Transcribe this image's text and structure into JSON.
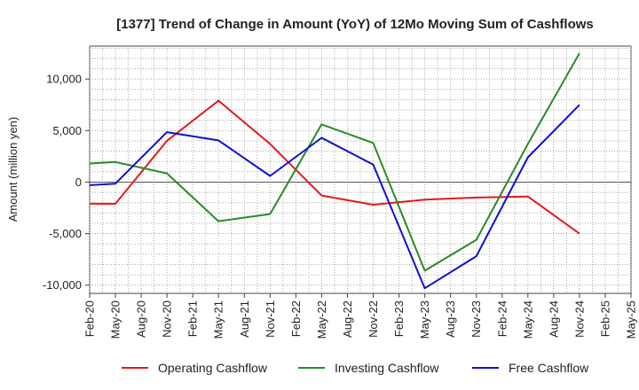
{
  "chart_data": {
    "type": "line",
    "title": "[1377]  Trend of Change in Amount (YoY) of 12Mo Moving Sum of Cashflows",
    "xlabel": "",
    "ylabel": "Amount (million yen)",
    "categories": [
      "Feb-20",
      "May-20",
      "Aug-20",
      "Nov-20",
      "Feb-21",
      "May-21",
      "Aug-21",
      "Nov-21",
      "Feb-22",
      "May-22",
      "Aug-22",
      "Nov-22",
      "Feb-23",
      "May-23",
      "Aug-23",
      "Nov-23",
      "Feb-24",
      "May-24",
      "Aug-24",
      "Nov-24",
      "Feb-25",
      "May-25"
    ],
    "ylim": [
      -10800,
      13200
    ],
    "yticks": [
      -10000,
      -5000,
      0,
      5000,
      10000
    ],
    "ytick_labels": [
      "-10,000",
      "-5,000",
      "0",
      "5,000",
      "10,000"
    ],
    "grid": true,
    "legend_position": "bottom",
    "series": [
      {
        "name": "Operating Cashflow",
        "color": "#e31a1c",
        "points": [
          {
            "x": "Feb-20",
            "y": -2100
          },
          {
            "x": "May-20",
            "y": -2100
          },
          {
            "x": "Nov-20",
            "y": 4000
          },
          {
            "x": "May-21",
            "y": 7900
          },
          {
            "x": "Nov-21",
            "y": 3700
          },
          {
            "x": "May-22",
            "y": -1300
          },
          {
            "x": "Nov-22",
            "y": -2200
          },
          {
            "x": "May-23",
            "y": -1700
          },
          {
            "x": "Nov-23",
            "y": -1500
          },
          {
            "x": "May-24",
            "y": -1400
          },
          {
            "x": "Nov-24",
            "y": -5000
          }
        ]
      },
      {
        "name": "Investing Cashflow",
        "color": "#2a8a2a",
        "points": [
          {
            "x": "Feb-20",
            "y": 1800
          },
          {
            "x": "May-20",
            "y": 1950
          },
          {
            "x": "Nov-20",
            "y": 850
          },
          {
            "x": "May-21",
            "y": -3800
          },
          {
            "x": "Nov-21",
            "y": -3100
          },
          {
            "x": "May-22",
            "y": 5600
          },
          {
            "x": "Nov-22",
            "y": 3800
          },
          {
            "x": "May-23",
            "y": -8600
          },
          {
            "x": "Nov-23",
            "y": -5600
          },
          {
            "x": "May-24",
            "y": 3700
          },
          {
            "x": "Nov-24",
            "y": 12500
          }
        ]
      },
      {
        "name": "Free Cashflow",
        "color": "#1010d0",
        "points": [
          {
            "x": "Feb-20",
            "y": -300
          },
          {
            "x": "May-20",
            "y": -150
          },
          {
            "x": "Nov-20",
            "y": 4850
          },
          {
            "x": "May-21",
            "y": 4050
          },
          {
            "x": "Nov-21",
            "y": 600
          },
          {
            "x": "May-22",
            "y": 4300
          },
          {
            "x": "Nov-22",
            "y": 1700
          },
          {
            "x": "May-23",
            "y": -10300
          },
          {
            "x": "Nov-23",
            "y": -7200
          },
          {
            "x": "May-24",
            "y": 2400
          },
          {
            "x": "Nov-24",
            "y": 7500
          }
        ]
      }
    ]
  }
}
